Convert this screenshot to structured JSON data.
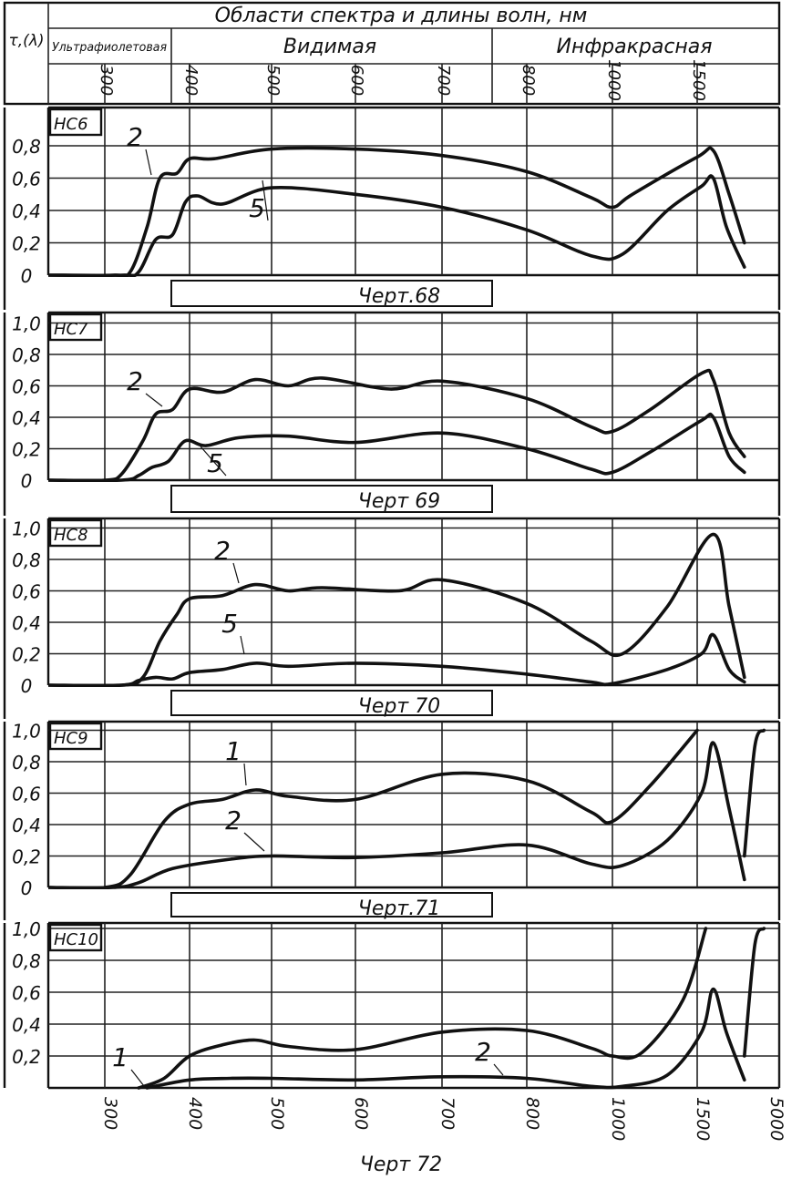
{
  "header": {
    "region_title": "Области спектра и длины волн, нм",
    "ylabel": "τ,(λ)",
    "regions": [
      {
        "name": "Ультрафиолетовая"
      },
      {
        "name": "Видимая"
      },
      {
        "name": "Инфракрасная"
      }
    ],
    "top_ticks": [
      "300",
      "400",
      "500",
      "600",
      "700",
      "800",
      "1000",
      "1500"
    ]
  },
  "bottom_ticks": [
    "300",
    "400",
    "500",
    "600",
    "700",
    "800",
    "1000",
    "1500",
    "5000"
  ],
  "chart_data": [
    {
      "type": "line",
      "panel_label": "НС6",
      "caption": "Черт.68",
      "x_ticks": [
        "300",
        "400",
        "500",
        "600",
        "700",
        "800",
        "1000",
        "1500"
      ],
      "y_ticks": [
        "0",
        "0,2",
        "0,4",
        "0,6",
        "0,8"
      ],
      "ylim": [
        0,
        0.9
      ],
      "grid": true,
      "series": [
        {
          "name": "2",
          "points": [
            [
              250,
              0
            ],
            [
              310,
              0
            ],
            [
              330,
              0.02
            ],
            [
              350,
              0.3
            ],
            [
              365,
              0.6
            ],
            [
              385,
              0.63
            ],
            [
              400,
              0.72
            ],
            [
              430,
              0.72
            ],
            [
              500,
              0.78
            ],
            [
              600,
              0.78
            ],
            [
              700,
              0.74
            ],
            [
              800,
              0.64
            ],
            [
              950,
              0.48
            ],
            [
              1000,
              0.42
            ],
            [
              1100,
              0.5
            ],
            [
              1500,
              0.73
            ],
            [
              1900,
              0.77
            ],
            [
              2400,
              0.5
            ],
            [
              3000,
              0.2
            ]
          ]
        },
        {
          "name": "5",
          "points": [
            [
              250,
              0
            ],
            [
              320,
              0
            ],
            [
              340,
              0.02
            ],
            [
              360,
              0.22
            ],
            [
              380,
              0.25
            ],
            [
              395,
              0.45
            ],
            [
              410,
              0.49
            ],
            [
              440,
              0.44
            ],
            [
              500,
              0.54
            ],
            [
              600,
              0.5
            ],
            [
              700,
              0.42
            ],
            [
              800,
              0.28
            ],
            [
              950,
              0.12
            ],
            [
              1050,
              0.13
            ],
            [
              1300,
              0.4
            ],
            [
              1600,
              0.55
            ],
            [
              1900,
              0.6
            ],
            [
              2300,
              0.3
            ],
            [
              3000,
              0.05
            ]
          ]
        }
      ]
    },
    {
      "type": "line",
      "panel_label": "НС7",
      "caption": "Черт 69",
      "x_ticks": [
        "300",
        "400",
        "500",
        "600",
        "700",
        "800",
        "1000",
        "1500"
      ],
      "y_ticks": [
        "0",
        "0,2",
        "0,4",
        "0,6",
        "0,8",
        "1,0"
      ],
      "ylim": [
        0,
        1.0
      ],
      "grid": true,
      "series": [
        {
          "name": "2",
          "points": [
            [
              250,
              0
            ],
            [
              300,
              0
            ],
            [
              320,
              0.04
            ],
            [
              345,
              0.25
            ],
            [
              360,
              0.42
            ],
            [
              380,
              0.45
            ],
            [
              400,
              0.58
            ],
            [
              440,
              0.56
            ],
            [
              480,
              0.64
            ],
            [
              520,
              0.6
            ],
            [
              560,
              0.65
            ],
            [
              640,
              0.58
            ],
            [
              700,
              0.63
            ],
            [
              800,
              0.52
            ],
            [
              950,
              0.34
            ],
            [
              1000,
              0.31
            ],
            [
              1200,
              0.45
            ],
            [
              1600,
              0.68
            ],
            [
              1900,
              0.64
            ],
            [
              2400,
              0.3
            ],
            [
              3000,
              0.15
            ]
          ]
        },
        {
          "name": "5",
          "points": [
            [
              250,
              0
            ],
            [
              320,
              0
            ],
            [
              340,
              0.03
            ],
            [
              355,
              0.08
            ],
            [
              375,
              0.12
            ],
            [
              395,
              0.25
            ],
            [
              420,
              0.22
            ],
            [
              460,
              0.27
            ],
            [
              520,
              0.28
            ],
            [
              600,
              0.24
            ],
            [
              700,
              0.3
            ],
            [
              800,
              0.2
            ],
            [
              950,
              0.07
            ],
            [
              1000,
              0.05
            ],
            [
              1200,
              0.18
            ],
            [
              1600,
              0.38
            ],
            [
              1900,
              0.4
            ],
            [
              2400,
              0.15
            ],
            [
              3000,
              0.05
            ]
          ]
        }
      ]
    },
    {
      "type": "line",
      "panel_label": "НС8",
      "caption": "Черт 70",
      "x_ticks": [
        "300",
        "400",
        "500",
        "600",
        "700",
        "800",
        "1000",
        "1500"
      ],
      "y_ticks": [
        "0",
        "0,2",
        "0,4",
        "0,6",
        "0,8",
        "1,0"
      ],
      "ylim": [
        0,
        1.0
      ],
      "grid": true,
      "series": [
        {
          "name": "2",
          "points": [
            [
              250,
              0
            ],
            [
              320,
              0
            ],
            [
              345,
              0.05
            ],
            [
              365,
              0.28
            ],
            [
              385,
              0.45
            ],
            [
              400,
              0.55
            ],
            [
              440,
              0.57
            ],
            [
              480,
              0.64
            ],
            [
              520,
              0.6
            ],
            [
              560,
              0.62
            ],
            [
              650,
              0.6
            ],
            [
              700,
              0.67
            ],
            [
              800,
              0.52
            ],
            [
              950,
              0.28
            ],
            [
              1050,
              0.2
            ],
            [
              1300,
              0.5
            ],
            [
              1900,
              0.96
            ],
            [
              2400,
              0.5
            ],
            [
              3000,
              0.05
            ]
          ]
        },
        {
          "name": "5",
          "points": [
            [
              250,
              0
            ],
            [
              320,
              0
            ],
            [
              340,
              0.03
            ],
            [
              360,
              0.05
            ],
            [
              380,
              0.04
            ],
            [
              400,
              0.08
            ],
            [
              440,
              0.1
            ],
            [
              480,
              0.14
            ],
            [
              520,
              0.12
            ],
            [
              600,
              0.14
            ],
            [
              700,
              0.12
            ],
            [
              800,
              0.07
            ],
            [
              950,
              0.02
            ],
            [
              1000,
              0.01
            ],
            [
              1300,
              0.1
            ],
            [
              1600,
              0.2
            ],
            [
              1900,
              0.32
            ],
            [
              2400,
              0.1
            ],
            [
              3000,
              0.02
            ]
          ]
        }
      ]
    },
    {
      "type": "line",
      "panel_label": "НС9",
      "caption": "Черт.71",
      "x_ticks": [
        "300",
        "400",
        "500",
        "600",
        "700",
        "800",
        "1000",
        "1500"
      ],
      "y_ticks": [
        "0",
        "0,2",
        "0,4",
        "0,6",
        "0,8",
        "1,0"
      ],
      "ylim": [
        0,
        1.0
      ],
      "grid": true,
      "series": [
        {
          "name": "1",
          "points": [
            [
              250,
              0
            ],
            [
              300,
              0
            ],
            [
              330,
              0.08
            ],
            [
              370,
              0.42
            ],
            [
              400,
              0.53
            ],
            [
              440,
              0.56
            ],
            [
              480,
              0.62
            ],
            [
              520,
              0.58
            ],
            [
              600,
              0.56
            ],
            [
              700,
              0.72
            ],
            [
              800,
              0.68
            ],
            [
              950,
              0.48
            ],
            [
              1000,
              0.42
            ],
            [
              1200,
              0.65
            ],
            [
              1500,
              1.0
            ]
          ]
        },
        {
          "name": "2",
          "points": [
            [
              250,
              0
            ],
            [
              310,
              0
            ],
            [
              340,
              0.03
            ],
            [
              380,
              0.12
            ],
            [
              450,
              0.18
            ],
            [
              500,
              0.2
            ],
            [
              600,
              0.19
            ],
            [
              700,
              0.22
            ],
            [
              800,
              0.27
            ],
            [
              950,
              0.15
            ],
            [
              1050,
              0.14
            ],
            [
              1300,
              0.3
            ],
            [
              1600,
              0.6
            ],
            [
              1900,
              0.92
            ],
            [
              2400,
              0.5
            ],
            [
              3000,
              0.05
            ]
          ]
        },
        {
          "name": "",
          "points": [
            [
              3000,
              0.2
            ],
            [
              3500,
              0.9
            ],
            [
              4000,
              1.0
            ]
          ]
        }
      ]
    },
    {
      "type": "line",
      "panel_label": "НС10",
      "caption": "Черт 72",
      "x_ticks": [
        "300",
        "400",
        "500",
        "600",
        "700",
        "800",
        "1000",
        "1500",
        "5000"
      ],
      "y_ticks": [
        "0,2",
        "0,4",
        "0,6",
        "0,8",
        "1,0"
      ],
      "ylim": [
        0,
        1.0
      ],
      "grid": true,
      "series": [
        {
          "name": "1",
          "points": [
            [
              340,
              0
            ],
            [
              370,
              0.06
            ],
            [
              400,
              0.2
            ],
            [
              440,
              0.27
            ],
            [
              480,
              0.3
            ],
            [
              520,
              0.26
            ],
            [
              600,
              0.24
            ],
            [
              700,
              0.35
            ],
            [
              800,
              0.36
            ],
            [
              950,
              0.25
            ],
            [
              1000,
              0.2
            ],
            [
              1150,
              0.22
            ],
            [
              1400,
              0.55
            ],
            [
              1700,
              1.0
            ]
          ]
        },
        {
          "name": "2",
          "points": [
            [
              350,
              0
            ],
            [
              400,
              0.05
            ],
            [
              450,
              0.06
            ],
            [
              500,
              0.06
            ],
            [
              600,
              0.05
            ],
            [
              700,
              0.07
            ],
            [
              800,
              0.06
            ],
            [
              950,
              0.01
            ],
            [
              1050,
              0.01
            ],
            [
              1300,
              0.08
            ],
            [
              1600,
              0.35
            ],
            [
              1900,
              0.62
            ],
            [
              2300,
              0.35
            ],
            [
              3000,
              0.05
            ]
          ]
        },
        {
          "name": "",
          "points": [
            [
              3000,
              0.2
            ],
            [
              3500,
              0.9
            ],
            [
              4000,
              1.0
            ]
          ]
        }
      ]
    }
  ]
}
